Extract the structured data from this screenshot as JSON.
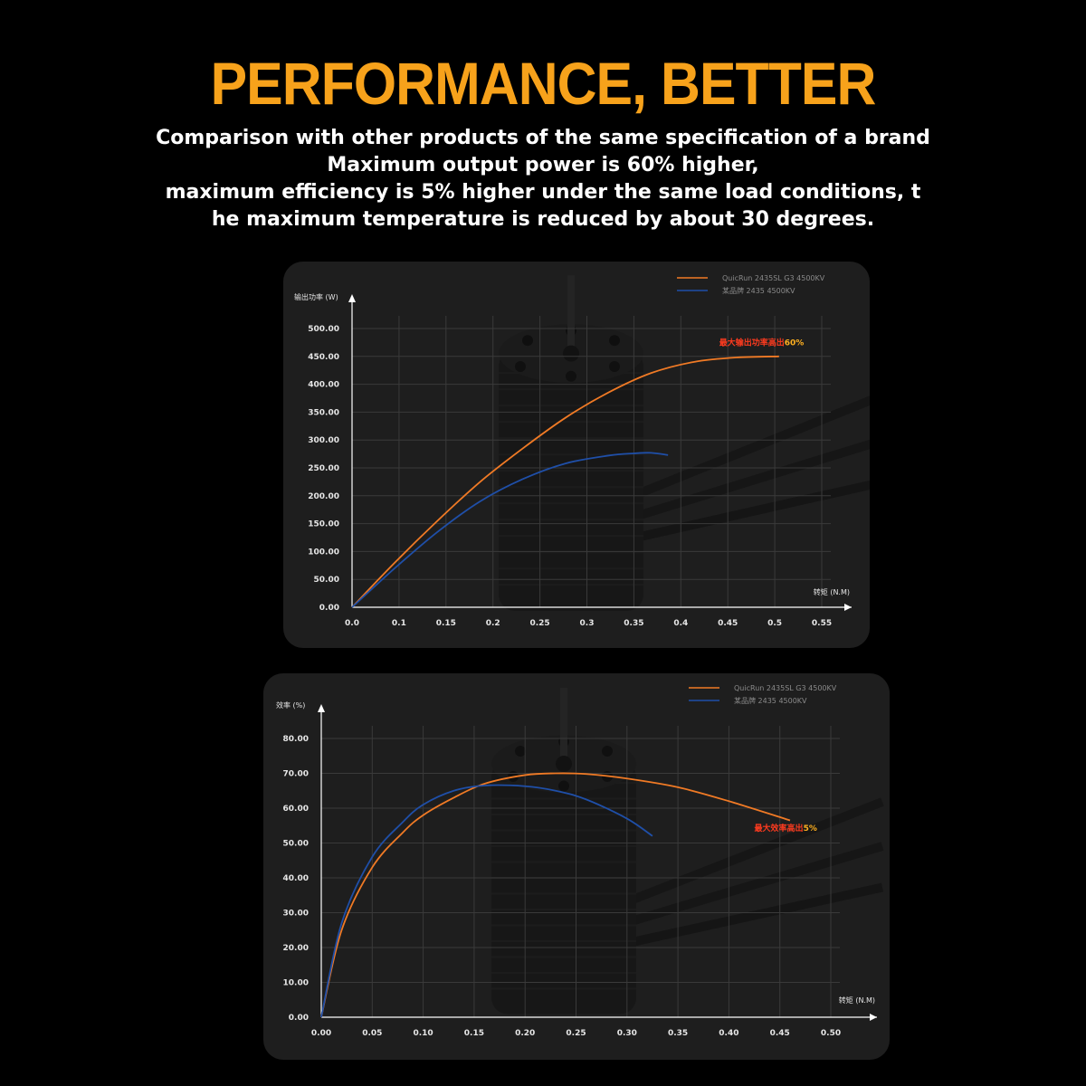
{
  "header": {
    "title": "PERFORMANCE, BETTER",
    "lines": [
      "Comparison with other products of the same specification of a brand",
      "Maximum output power is 60% higher,",
      "maximum efficiency is 5% higher under the same load conditions, t",
      "he maximum temperature is reduced by about 30 degrees."
    ]
  },
  "colors": {
    "accent_title": "#f7a21b",
    "series_a": "#f07a25",
    "series_b": "#1f4fa8",
    "annotation": "#ff3b1f",
    "annotation_highlight": "#ffb020"
  },
  "chart_data": [
    {
      "type": "line",
      "ylabel": "输出功率 (W)",
      "xlabel": "转矩 (N.M)",
      "x_ticks": [
        "0.0",
        "0.1",
        "0.15",
        "0.2",
        "0.25",
        "0.3",
        "0.35",
        "0.4",
        "0.45",
        "0.5",
        "0.55"
      ],
      "y_ticks": [
        "0.00",
        "50.00",
        "100.00",
        "150.00",
        "200.00",
        "250.00",
        "300.00",
        "350.00",
        "400.00",
        "450.00",
        "500.00"
      ],
      "xlim": [
        0,
        0.55
      ],
      "ylim": [
        0,
        500
      ],
      "grid": true,
      "legend_position": "top-right",
      "annotation": {
        "text_main": "最大输出功率高出",
        "text_highlight": "60%",
        "x": 0.43,
        "y": 470
      },
      "series": [
        {
          "name": "QuicRun 2435SL G3 4500KV",
          "color": "#f07a25",
          "x": [
            0.0,
            0.05,
            0.1,
            0.15,
            0.2,
            0.25,
            0.3,
            0.35,
            0.4,
            0.45,
            0.5
          ],
          "y": [
            0,
            80,
            155,
            225,
            285,
            340,
            385,
            420,
            440,
            448,
            450
          ]
        },
        {
          "name": "某品牌 2435 4500KV",
          "color": "#1f4fa8",
          "x": [
            0.0,
            0.05,
            0.1,
            0.15,
            0.2,
            0.25,
            0.3,
            0.33,
            0.35,
            0.37
          ],
          "y": [
            0,
            70,
            135,
            190,
            230,
            258,
            272,
            276,
            277,
            273
          ]
        }
      ]
    },
    {
      "type": "line",
      "ylabel": "效率 (%)",
      "xlabel": "转矩 (N.M)",
      "x_ticks": [
        "0.00",
        "0.05",
        "0.10",
        "0.15",
        "0.20",
        "0.25",
        "0.30",
        "0.35",
        "0.40",
        "0.45",
        "0.50"
      ],
      "y_ticks": [
        "0.00",
        "10.00",
        "20.00",
        "30.00",
        "40.00",
        "50.00",
        "60.00",
        "70.00",
        "80.00"
      ],
      "xlim": [
        0,
        0.5
      ],
      "ylim": [
        0,
        80
      ],
      "grid": true,
      "legend_position": "top-right",
      "annotation": {
        "text_main": "最大效率高出",
        "text_highlight": "5%",
        "x": 0.425,
        "y": 53.5
      },
      "series": [
        {
          "name": "QuicRun 2435SL G3 4500KV",
          "color": "#f07a25",
          "x": [
            0.0,
            0.02,
            0.05,
            0.08,
            0.1,
            0.13,
            0.16,
            0.2,
            0.23,
            0.26,
            0.3,
            0.35,
            0.4,
            0.46
          ],
          "y": [
            0,
            25,
            43,
            53,
            58,
            63,
            67,
            69.5,
            70,
            69.8,
            68.5,
            66,
            62,
            56.5
          ]
        },
        {
          "name": "某品牌 2435 4500KV",
          "color": "#1f4fa8",
          "x": [
            0.0,
            0.02,
            0.05,
            0.08,
            0.1,
            0.13,
            0.16,
            0.2,
            0.23,
            0.26,
            0.3,
            0.325
          ],
          "y": [
            0,
            27,
            46,
            56,
            61,
            65,
            66.5,
            66.3,
            65,
            62.5,
            57,
            52
          ]
        }
      ]
    }
  ]
}
